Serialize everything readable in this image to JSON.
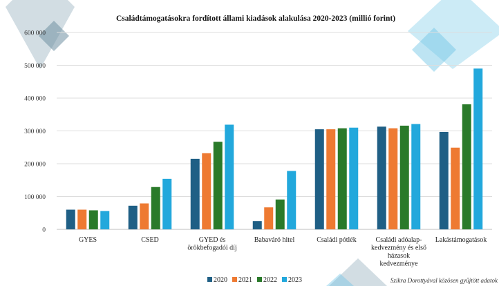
{
  "chart_data": {
    "type": "bar",
    "title": "Családtámogatásokra fordított állami kiadások alakulása 2020-2023 (millió forint)",
    "categories": [
      [
        "GYES"
      ],
      [
        "CSED"
      ],
      [
        "GYED és",
        "örökbefogadói díj"
      ],
      [
        "Babaváró hitel"
      ],
      [
        "Családi pótlék"
      ],
      [
        "Családi adóalap-",
        "kedvezmény és első",
        "házasok",
        "kedvezménye"
      ],
      [
        "Lakástámogatások"
      ]
    ],
    "series": [
      {
        "name": "2020",
        "color": "#1f5f85",
        "values": [
          60000,
          72000,
          215000,
          25000,
          305000,
          313000,
          297000
        ]
      },
      {
        "name": "2021",
        "color": "#ee7a32",
        "values": [
          60000,
          79000,
          232000,
          67000,
          305000,
          308000,
          249000
        ]
      },
      {
        "name": "2022",
        "color": "#2a7a2a",
        "values": [
          58000,
          129000,
          267000,
          91000,
          308000,
          316000,
          381000
        ]
      },
      {
        "name": "2023",
        "color": "#22a8dc",
        "values": [
          56000,
          154000,
          319000,
          178000,
          310000,
          321000,
          490000
        ]
      }
    ],
    "ylim": [
      0,
      600000
    ],
    "yticks": [
      0,
      100000,
      200000,
      300000,
      400000,
      500000,
      600000
    ],
    "ytick_labels": [
      "0",
      "100 000",
      "200 000",
      "300 000",
      "400 000",
      "500 000",
      "600 000"
    ],
    "grid": true,
    "legend_position": "bottom"
  },
  "source_note": "Szikra Dorottyával közösen gyűjtött adatok"
}
